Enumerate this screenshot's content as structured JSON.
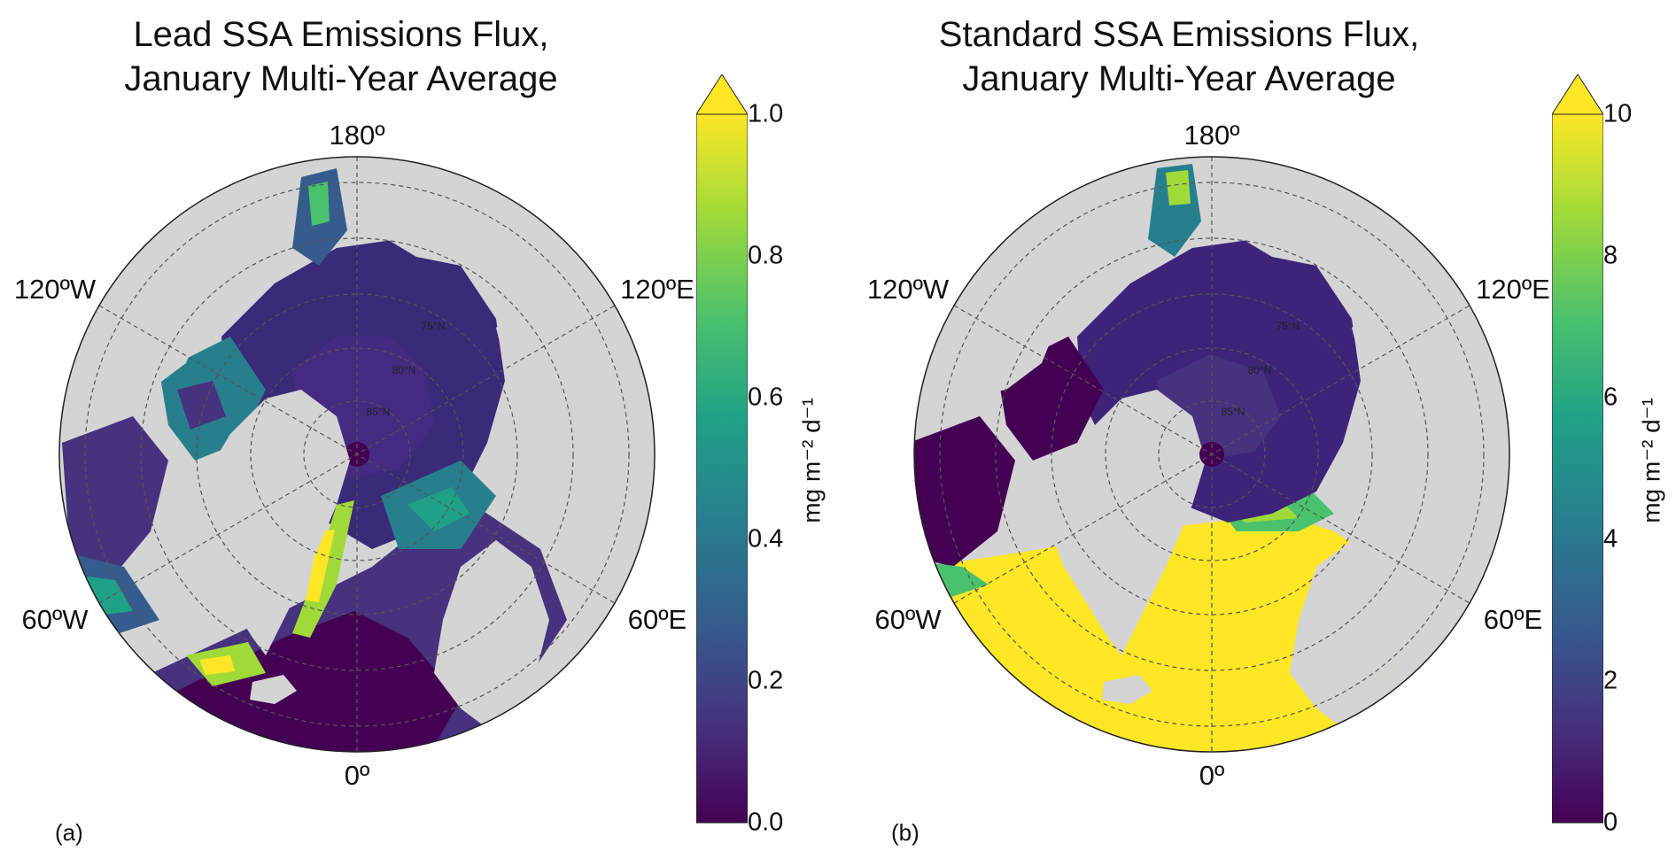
{
  "colors": {
    "land": "#d4d4d4",
    "ocean_outside": "#d4d4d4",
    "viridis": [
      "#440154",
      "#46327e",
      "#365c8d",
      "#277f8e",
      "#1fa187",
      "#4ac16d",
      "#a0da39",
      "#fde725"
    ]
  },
  "panels": [
    {
      "id": "a",
      "letter": "(a)",
      "title_line1": "Lead SSA Emissions Flux,",
      "title_line2": "January Multi-Year Average",
      "lon_labels": {
        "top": "180º",
        "bottom": "0º",
        "left_upper": "120ºW",
        "left_lower": "60ºW",
        "right_upper": "120ºE",
        "right_lower": "60ºE"
      },
      "lat_labels": [
        "75°N",
        "80°N",
        "85°N"
      ],
      "colorbar": {
        "ticks": [
          "0.0",
          "0.2",
          "0.4",
          "0.6",
          "0.8",
          "1.0"
        ],
        "min": 0.0,
        "max": 1.0,
        "units": "mg m⁻² d⁻¹",
        "extend": "max"
      }
    },
    {
      "id": "b",
      "letter": "(b)",
      "title_line1": "Standard SSA Emissions Flux,",
      "title_line2": "January Multi-Year Average",
      "lon_labels": {
        "top": "180º",
        "bottom": "0º",
        "left_upper": "120ºW",
        "left_lower": "60ºW",
        "right_upper": "120ºE",
        "right_lower": "60ºE"
      },
      "lat_labels": [
        "75°N",
        "80°N",
        "85°N"
      ],
      "colorbar": {
        "ticks": [
          "0",
          "2",
          "4",
          "6",
          "8",
          "10"
        ],
        "min": 0,
        "max": 10,
        "units": "mg m⁻² d⁻¹",
        "extend": "max"
      }
    }
  ]
}
